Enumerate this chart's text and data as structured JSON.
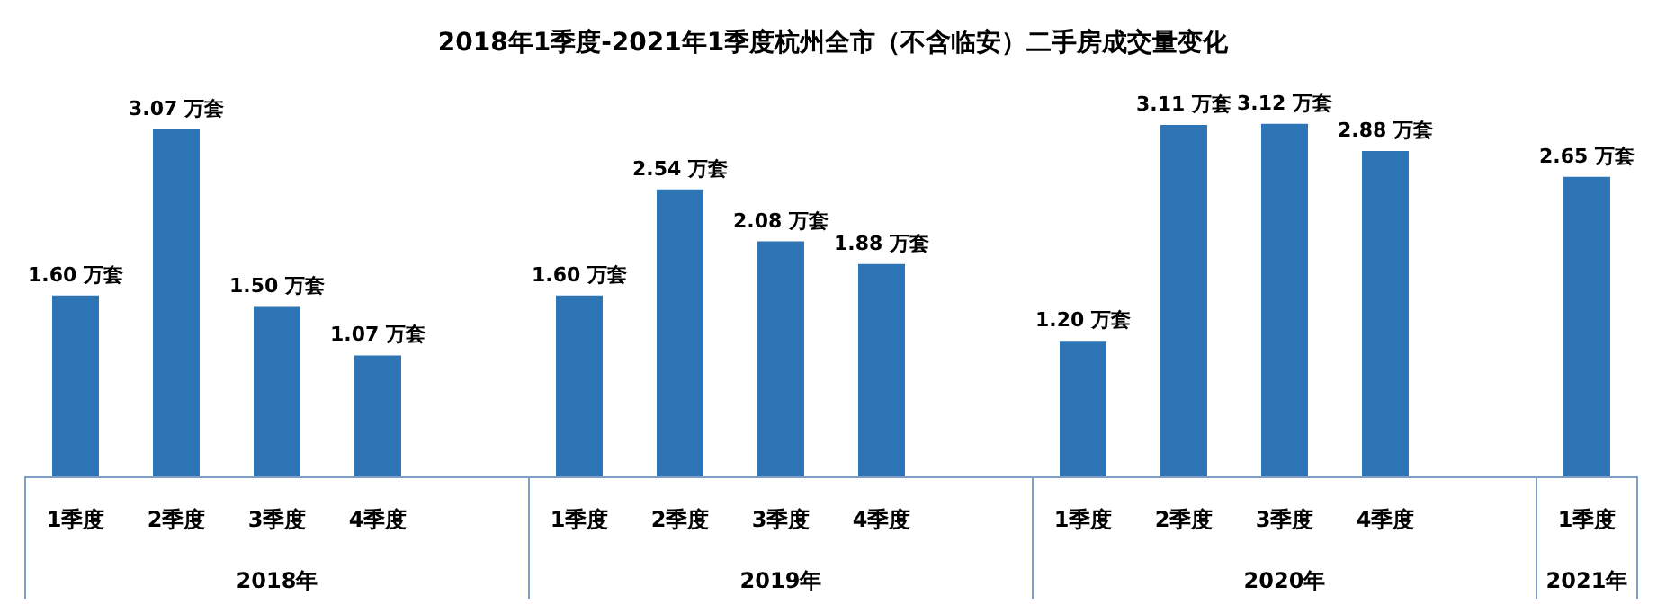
{
  "chart_data": {
    "type": "bar",
    "title": "2018年1季度-2021年1季度杭州全市（不含临安）二手房成交量变化",
    "categories": [
      "1季度",
      "2季度",
      "3季度",
      "4季度",
      null,
      "1季度",
      "2季度",
      "3季度",
      "4季度",
      null,
      "1季度",
      "2季度",
      "3季度",
      "4季度",
      null,
      "1季度"
    ],
    "values": [
      1.6,
      3.07,
      1.5,
      1.07,
      null,
      1.6,
      2.54,
      2.08,
      1.88,
      null,
      1.2,
      3.11,
      3.12,
      2.88,
      null,
      2.65
    ],
    "value_labels": [
      "1.60 万套",
      "3.07 万套",
      "1.50 万套",
      "1.07 万套",
      null,
      "1.60 万套",
      "2.54 万套",
      "2.08 万套",
      "1.88 万套",
      null,
      "1.20 万套",
      "3.11 万套",
      "3.12 万套",
      "2.88 万套",
      null,
      "2.65 万套"
    ],
    "color": "#2e75b6",
    "annotations": [
      "2018年",
      "2019年",
      "2020年",
      "2021年"
    ]
  }
}
